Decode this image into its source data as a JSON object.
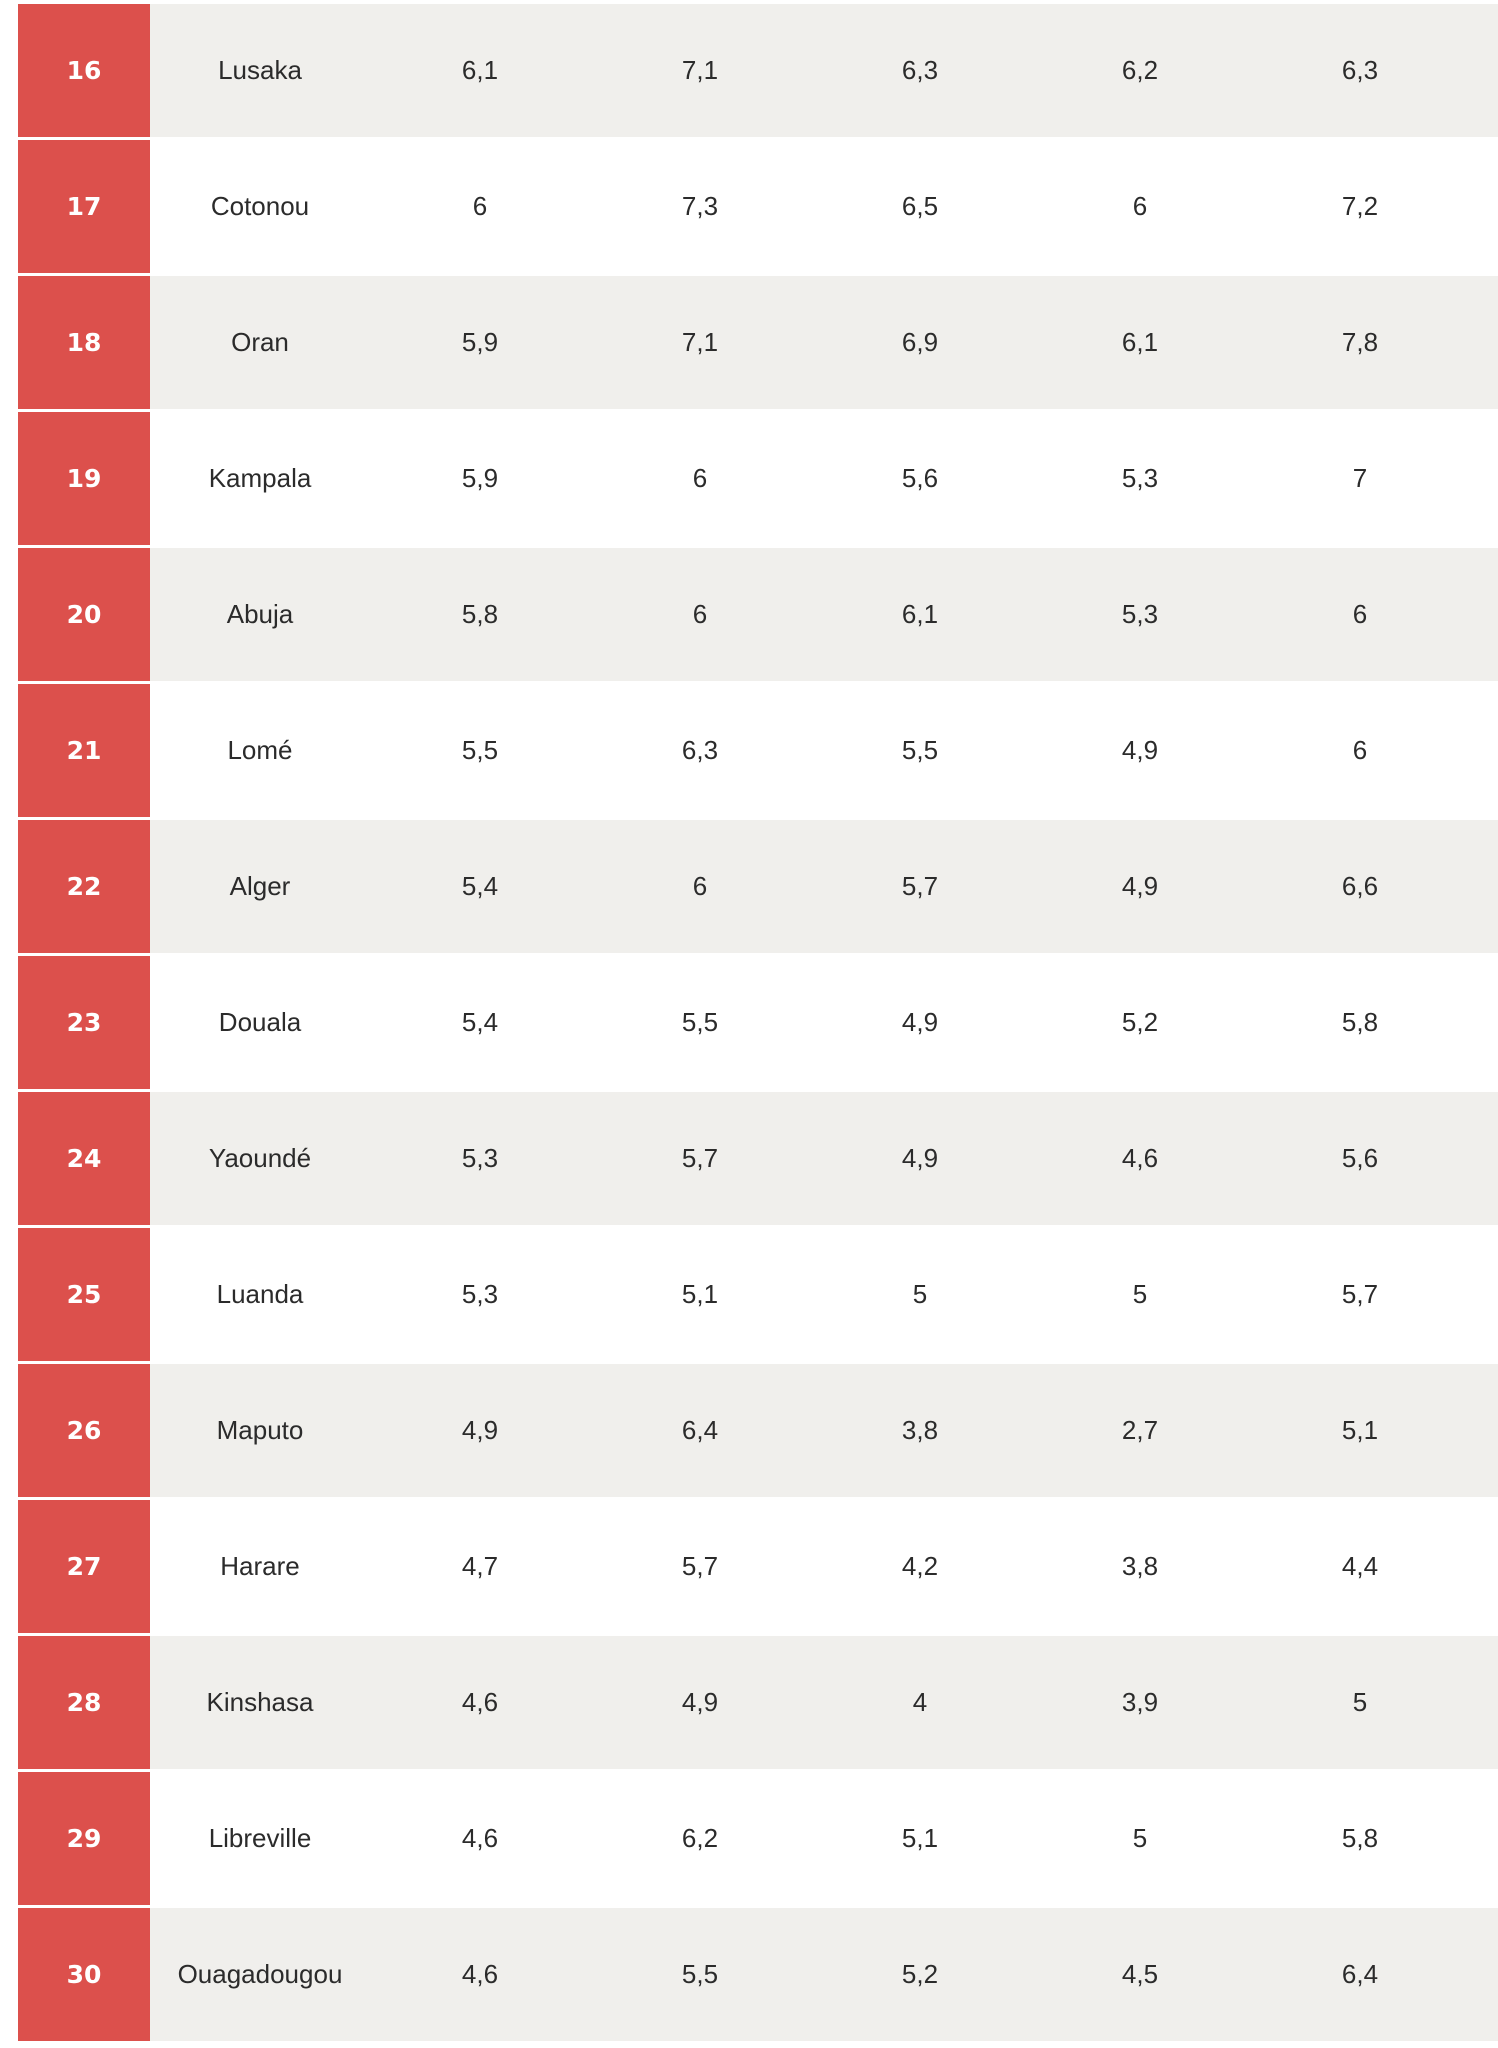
{
  "rows": [
    {
      "rank": "16",
      "city": "Lusaka",
      "values": [
        "6,1",
        "7,1",
        "6,3",
        "6,2",
        "6,3"
      ]
    },
    {
      "rank": "17",
      "city": "Cotonou",
      "values": [
        "6",
        "7,3",
        "6,5",
        "6",
        "7,2"
      ]
    },
    {
      "rank": "18",
      "city": "Oran",
      "values": [
        "5,9",
        "7,1",
        "6,9",
        "6,1",
        "7,8"
      ]
    },
    {
      "rank": "19",
      "city": "Kampala",
      "values": [
        "5,9",
        "6",
        "5,6",
        "5,3",
        "7"
      ]
    },
    {
      "rank": "20",
      "city": "Abuja",
      "values": [
        "5,8",
        "6",
        "6,1",
        "5,3",
        "6"
      ]
    },
    {
      "rank": "21",
      "city": "Lomé",
      "values": [
        "5,5",
        "6,3",
        "5,5",
        "4,9",
        "6"
      ]
    },
    {
      "rank": "22",
      "city": "Alger",
      "values": [
        "5,4",
        "6",
        "5,7",
        "4,9",
        "6,6"
      ]
    },
    {
      "rank": "23",
      "city": "Douala",
      "values": [
        "5,4",
        "5,5",
        "4,9",
        "5,2",
        "5,8"
      ]
    },
    {
      "rank": "24",
      "city": "Yaoundé",
      "values": [
        "5,3",
        "5,7",
        "4,9",
        "4,6",
        "5,6"
      ]
    },
    {
      "rank": "25",
      "city": "Luanda",
      "values": [
        "5,3",
        "5,1",
        "5",
        "5",
        "5,7"
      ]
    },
    {
      "rank": "26",
      "city": "Maputo",
      "values": [
        "4,9",
        "6,4",
        "3,8",
        "2,7",
        "5,1"
      ]
    },
    {
      "rank": "27",
      "city": "Harare",
      "values": [
        "4,7",
        "5,7",
        "4,2",
        "3,8",
        "4,4"
      ]
    },
    {
      "rank": "28",
      "city": "Kinshasa",
      "values": [
        "4,6",
        "4,9",
        "4",
        "3,9",
        "5"
      ]
    },
    {
      "rank": "29",
      "city": "Libreville",
      "values": [
        "4,6",
        "6,2",
        "5,1",
        "5",
        "5,8"
      ]
    },
    {
      "rank": "30",
      "city": "Ouagadougou",
      "values": [
        "4,6",
        "5,5",
        "5,2",
        "4,5",
        "6,4"
      ]
    }
  ]
}
